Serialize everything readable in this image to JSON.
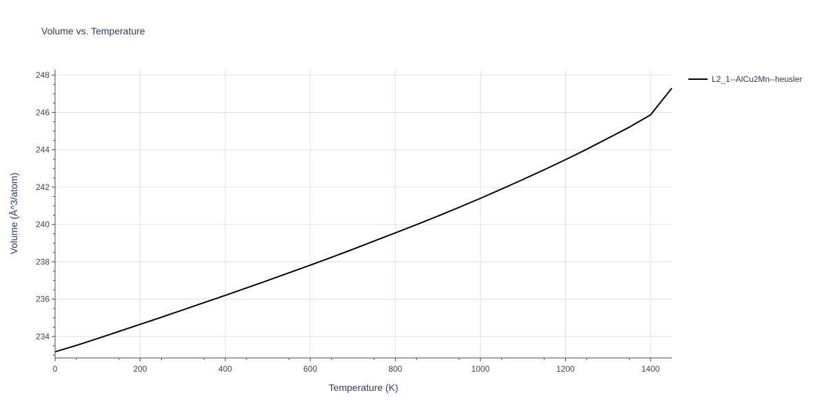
{
  "chart_data": {
    "type": "line",
    "title": "Volume vs. Temperature",
    "xlabel": "Temperature (K)",
    "ylabel": "Volume (Å^3/atom)",
    "xlim": [
      0,
      1450
    ],
    "ylim": [
      232.85,
      248.3
    ],
    "x_ticks": [
      0,
      200,
      400,
      600,
      800,
      1000,
      1200,
      1400
    ],
    "y_ticks": [
      234,
      236,
      238,
      240,
      242,
      244,
      246,
      248
    ],
    "grid": true,
    "legend_position": "top-right",
    "series": [
      {
        "name": "L2_1--AlCu2Mn--heusler",
        "color": "#000000",
        "x": [
          0,
          50,
          100,
          150,
          200,
          250,
          300,
          350,
          400,
          450,
          500,
          550,
          600,
          650,
          700,
          750,
          800,
          850,
          900,
          950,
          1000,
          1050,
          1100,
          1150,
          1200,
          1250,
          1300,
          1350,
          1400,
          1450
        ],
        "y": [
          233.18,
          233.52,
          233.89,
          234.27,
          234.65,
          235.03,
          235.42,
          235.81,
          236.2,
          236.6,
          237.0,
          237.41,
          237.82,
          238.24,
          238.67,
          239.11,
          239.55,
          239.99,
          240.45,
          240.92,
          241.4,
          241.9,
          242.41,
          242.93,
          243.47,
          244.03,
          244.62,
          245.21,
          245.87,
          247.3
        ]
      }
    ]
  }
}
